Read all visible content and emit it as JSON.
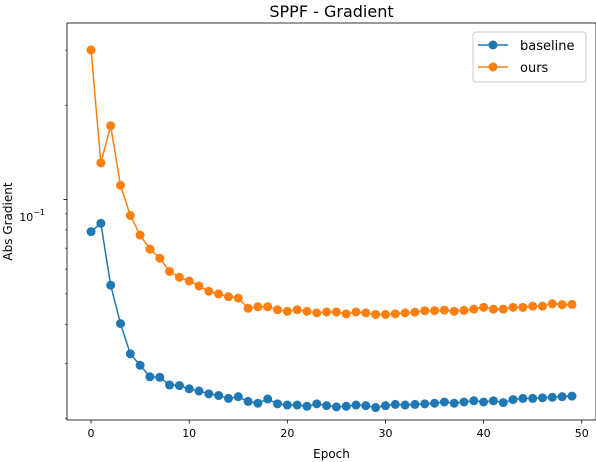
{
  "chart_data": {
    "type": "line",
    "title": "SPPF - Gradient",
    "xlabel": "Epoch",
    "ylabel": "Abs Gradient",
    "yscale": "log",
    "xlim": [
      -2.45,
      51.45
    ],
    "ylim": [
      0.0198,
      0.366
    ],
    "xticks": [
      0,
      10,
      20,
      30,
      40,
      50
    ],
    "xtick_labels": [
      "0",
      "10",
      "20",
      "30",
      "40",
      "50"
    ],
    "ytick_major_label": "10",
    "ytick_major_exponent": "−1",
    "legend_position": "top-right",
    "grid": false,
    "x": [
      0,
      1,
      2,
      3,
      4,
      5,
      6,
      7,
      8,
      9,
      10,
      11,
      12,
      13,
      14,
      15,
      16,
      17,
      18,
      19,
      20,
      21,
      22,
      23,
      24,
      25,
      26,
      27,
      28,
      29,
      30,
      31,
      32,
      33,
      34,
      35,
      36,
      37,
      38,
      39,
      40,
      41,
      42,
      43,
      44,
      45,
      46,
      47,
      48,
      49
    ],
    "series": [
      {
        "name": "baseline",
        "color": "#1f77b4",
        "values": [
          0.079,
          0.084,
          0.0533,
          0.0402,
          0.0322,
          0.0296,
          0.0272,
          0.0271,
          0.0256,
          0.0255,
          0.0249,
          0.0245,
          0.024,
          0.0237,
          0.0232,
          0.0235,
          0.0227,
          0.0224,
          0.0231,
          0.0223,
          0.0221,
          0.0221,
          0.0219,
          0.0223,
          0.022,
          0.0218,
          0.0219,
          0.0221,
          0.022,
          0.0217,
          0.022,
          0.0222,
          0.0221,
          0.0222,
          0.0223,
          0.0224,
          0.0226,
          0.0224,
          0.0226,
          0.0228,
          0.0226,
          0.0228,
          0.0225,
          0.023,
          0.0232,
          0.0232,
          0.0233,
          0.0234,
          0.0235,
          0.0236
        ]
      },
      {
        "name": "ours",
        "color": "#ff7f0e",
        "values": [
          0.3,
          0.131,
          0.172,
          0.111,
          0.089,
          0.077,
          0.0695,
          0.065,
          0.059,
          0.0565,
          0.055,
          0.053,
          0.051,
          0.05,
          0.049,
          0.0485,
          0.045,
          0.0455,
          0.0455,
          0.0445,
          0.044,
          0.0445,
          0.044,
          0.0435,
          0.0438,
          0.0438,
          0.0432,
          0.0438,
          0.0435,
          0.043,
          0.043,
          0.0432,
          0.0435,
          0.0437,
          0.0442,
          0.0442,
          0.0444,
          0.044,
          0.0443,
          0.0447,
          0.0453,
          0.0447,
          0.0447,
          0.0453,
          0.0453,
          0.0457,
          0.0457,
          0.0465,
          0.0462,
          0.0463
        ]
      }
    ]
  }
}
